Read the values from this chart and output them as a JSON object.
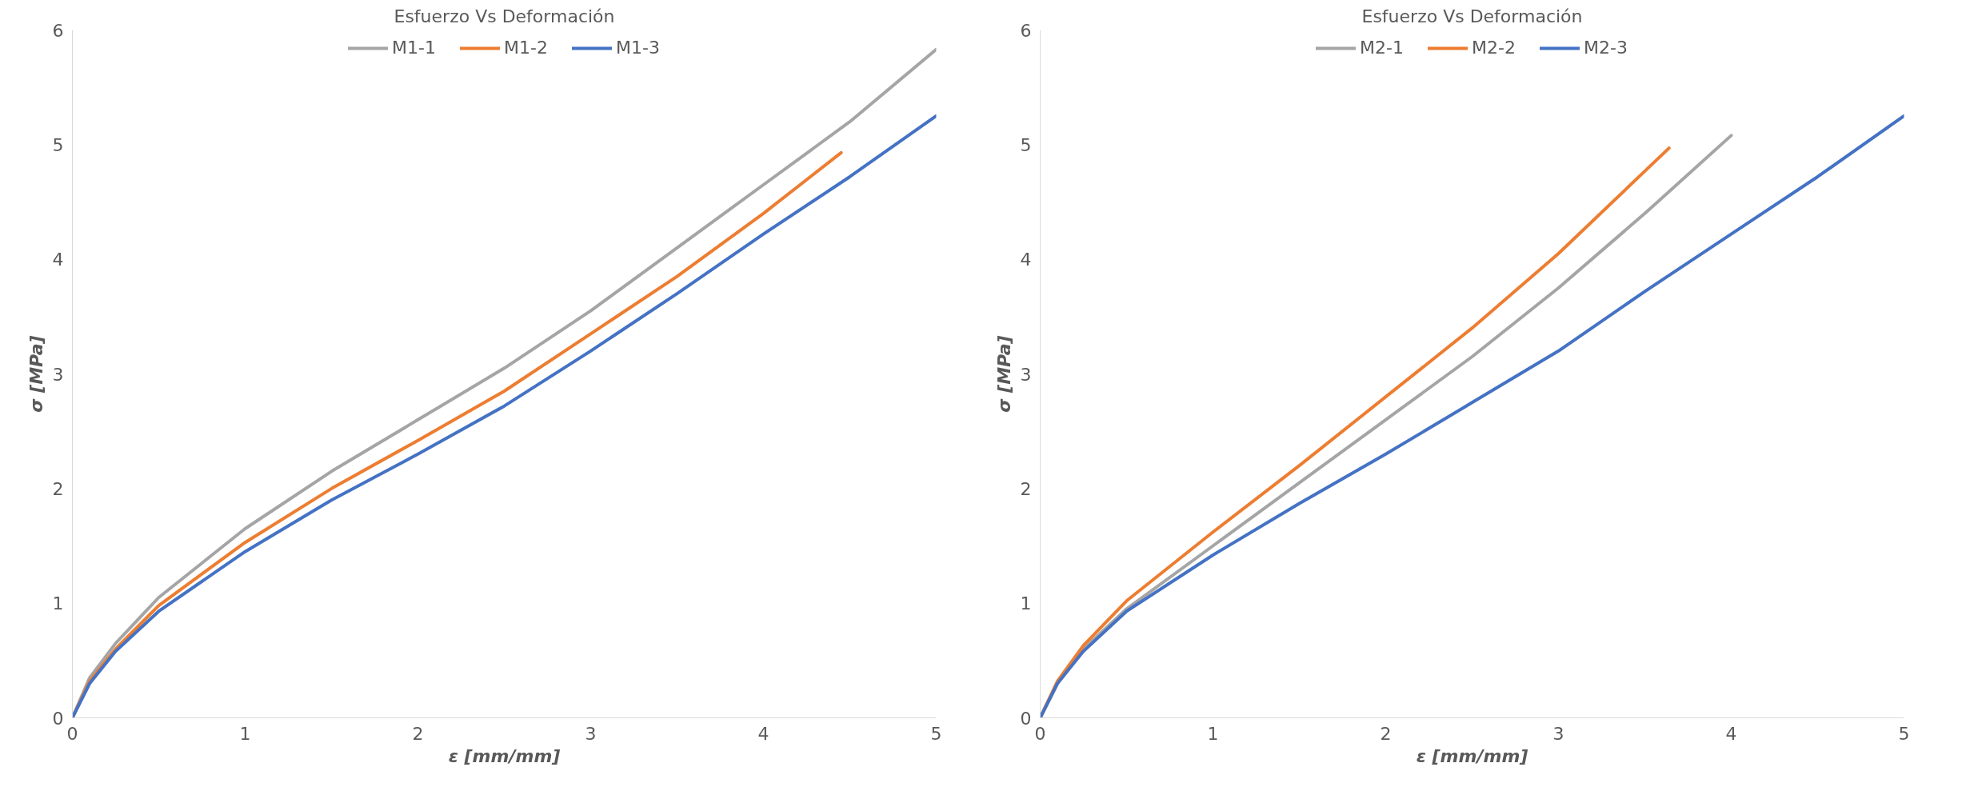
{
  "chart_data": [
    {
      "type": "line",
      "title": "Esfuerzo Vs Deformación",
      "xlabel": "ε [mm/mm]",
      "ylabel": "σ [MPa]",
      "xlim": [
        0,
        5
      ],
      "ylim": [
        0,
        6
      ],
      "xticks": [
        0,
        1,
        2,
        3,
        4,
        5
      ],
      "yticks": [
        0,
        1,
        2,
        3,
        4,
        5,
        6
      ],
      "grid": false,
      "legend": "top",
      "line_style": "solid",
      "marker": "none",
      "series": [
        {
          "name": "M1-1",
          "color": "#a5a5a5",
          "x": [
            0,
            0.1,
            0.25,
            0.5,
            1,
            1.5,
            2,
            2.5,
            3,
            3.5,
            4,
            4.5,
            5
          ],
          "values": [
            0,
            0.35,
            0.65,
            1.05,
            1.65,
            2.15,
            2.6,
            3.05,
            3.55,
            4.1,
            4.65,
            5.2,
            5.83
          ]
        },
        {
          "name": "M1-2",
          "color": "#ed7d31",
          "x": [
            0,
            0.1,
            0.25,
            0.5,
            1,
            1.5,
            2,
            2.5,
            3,
            3.5,
            4,
            4.45
          ],
          "values": [
            0,
            0.32,
            0.6,
            0.98,
            1.53,
            2.0,
            2.42,
            2.85,
            3.35,
            3.85,
            4.4,
            4.93
          ]
        },
        {
          "name": "M1-3",
          "color": "#4472c4",
          "x": [
            0,
            0.1,
            0.25,
            0.5,
            1,
            1.5,
            2,
            2.5,
            3,
            3.5,
            4,
            4.5,
            5
          ],
          "values": [
            0,
            0.3,
            0.58,
            0.93,
            1.45,
            1.9,
            2.3,
            2.72,
            3.2,
            3.7,
            4.22,
            4.72,
            5.25
          ]
        }
      ]
    },
    {
      "type": "line",
      "title": "Esfuerzo Vs Deformación",
      "xlabel": "ε [mm/mm]",
      "ylabel": "σ [MPa]",
      "xlim": [
        0,
        5
      ],
      "ylim": [
        0,
        6
      ],
      "xticks": [
        0,
        1,
        2,
        3,
        4,
        5
      ],
      "yticks": [
        0,
        1,
        2,
        3,
        4,
        5,
        6
      ],
      "grid": false,
      "legend": "top",
      "line_style": "solid",
      "marker": "none",
      "series": [
        {
          "name": "M2-1",
          "color": "#a5a5a5",
          "x": [
            0,
            0.1,
            0.25,
            0.5,
            1,
            1.5,
            2,
            2.5,
            3,
            3.5,
            4
          ],
          "values": [
            0,
            0.3,
            0.6,
            0.95,
            1.5,
            2.05,
            2.6,
            3.15,
            3.75,
            4.4,
            5.08
          ]
        },
        {
          "name": "M2-2",
          "color": "#ed7d31",
          "x": [
            0,
            0.1,
            0.25,
            0.5,
            1,
            1.5,
            2,
            2.5,
            3,
            3.64
          ],
          "values": [
            0,
            0.32,
            0.63,
            1.02,
            1.62,
            2.2,
            2.8,
            3.4,
            4.05,
            4.97
          ]
        },
        {
          "name": "M2-3",
          "color": "#4472c4",
          "x": [
            0,
            0.1,
            0.25,
            0.5,
            1,
            1.5,
            2,
            2.5,
            3,
            3.5,
            4,
            4.5,
            5
          ],
          "values": [
            0,
            0.3,
            0.58,
            0.93,
            1.42,
            1.87,
            2.3,
            2.75,
            3.2,
            3.72,
            4.22,
            4.72,
            5.25
          ]
        }
      ]
    }
  ]
}
